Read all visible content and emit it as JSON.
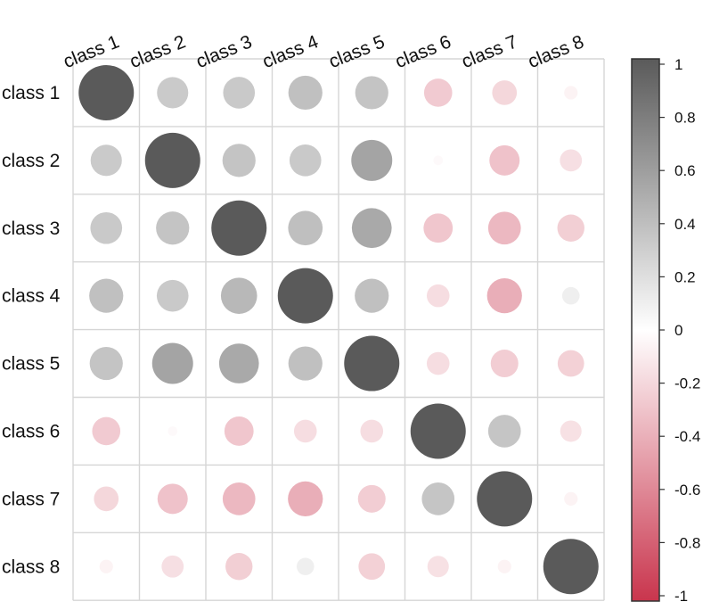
{
  "chart_data": {
    "type": "heatmap",
    "title": "",
    "xlabel": "",
    "ylabel": "",
    "labels": [
      "class 1",
      "class 2",
      "class 3",
      "class 4",
      "class 5",
      "class 6",
      "class 7",
      "class 8"
    ],
    "matrix": [
      [
        1.0,
        0.32,
        0.33,
        0.38,
        0.36,
        -0.26,
        -0.2,
        -0.06
      ],
      [
        0.32,
        1.0,
        0.36,
        0.33,
        0.55,
        -0.03,
        -0.3,
        -0.16
      ],
      [
        0.33,
        0.36,
        1.0,
        0.39,
        0.52,
        -0.28,
        -0.35,
        -0.24
      ],
      [
        0.38,
        0.33,
        0.43,
        1.0,
        0.38,
        -0.17,
        -0.4,
        0.1
      ],
      [
        0.36,
        0.55,
        0.52,
        0.38,
        1.0,
        -0.17,
        -0.25,
        -0.23
      ],
      [
        -0.26,
        -0.03,
        -0.28,
        -0.17,
        -0.17,
        1.0,
        0.35,
        -0.15
      ],
      [
        -0.2,
        -0.3,
        -0.35,
        -0.4,
        -0.25,
        0.35,
        1.0,
        -0.06
      ],
      [
        -0.06,
        -0.16,
        -0.24,
        0.1,
        -0.23,
        -0.15,
        -0.06,
        1.0
      ]
    ],
    "colorbar": {
      "range": [
        -1,
        1
      ],
      "ticks": [
        "1",
        "0.8",
        "0.6",
        "0.4",
        "0.2",
        "0",
        "-0.2",
        "-0.4",
        "-0.6",
        "-0.8",
        "-1"
      ],
      "high_color": "#5a5a5a",
      "mid_color": "#ffffff",
      "low_color": "#c9354d"
    },
    "grid": true,
    "legend": "right"
  }
}
